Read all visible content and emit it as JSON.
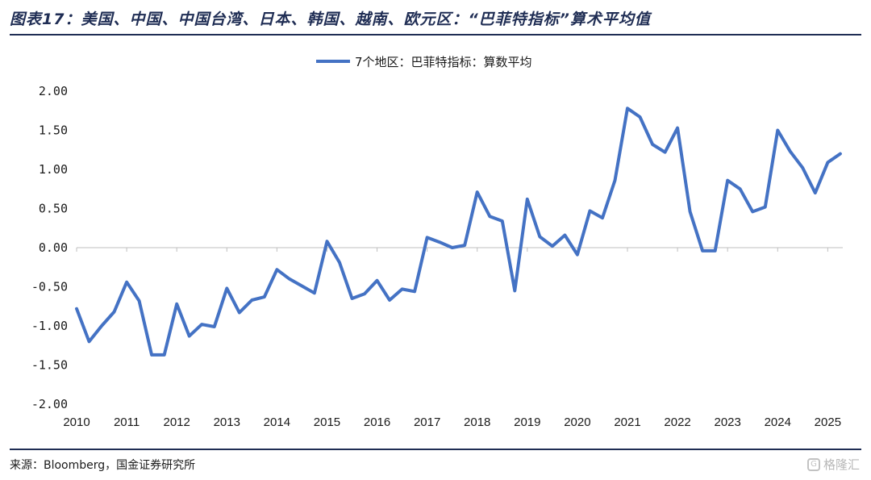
{
  "header": {
    "title": "图表17：美国、中国、中国台湾、日本、韩国、越南、欧元区：“巴菲特指标”算术平均值"
  },
  "footer": {
    "source": "来源：Bloomberg，国金证券研究所",
    "watermark": "格隆汇"
  },
  "icons": {
    "watermark_icon": "G"
  },
  "colors": {
    "series": "#4472c4",
    "accent": "#1f2d54"
  },
  "chart_data": {
    "type": "line",
    "title": "",
    "xlabel": "",
    "ylabel": "",
    "ylim": [
      -2.0,
      2.0
    ],
    "xlim": [
      2010,
      2025.3
    ],
    "y_ticks": [
      "2.00",
      "1.50",
      "1.00",
      "0.50",
      "0.00",
      "-0.50",
      "-1.00",
      "-1.50",
      "-2.00"
    ],
    "x_ticks": [
      "2010",
      "2011",
      "2012",
      "2013",
      "2014",
      "2015",
      "2016",
      "2017",
      "2018",
      "2019",
      "2020",
      "2021",
      "2022",
      "2023",
      "2024",
      "2025"
    ],
    "grid": false,
    "legend_position": "top-center",
    "series": [
      {
        "name": "7个地区：巴菲特指标：算数平均",
        "x": [
          2010.0,
          2010.25,
          2010.5,
          2010.75,
          2011.0,
          2011.25,
          2011.5,
          2011.75,
          2012.0,
          2012.25,
          2012.5,
          2012.75,
          2013.0,
          2013.25,
          2013.5,
          2013.75,
          2014.0,
          2014.25,
          2014.5,
          2014.75,
          2015.0,
          2015.25,
          2015.5,
          2015.75,
          2016.0,
          2016.25,
          2016.5,
          2016.75,
          2017.0,
          2017.25,
          2017.5,
          2017.75,
          2018.0,
          2018.25,
          2018.5,
          2018.75,
          2019.0,
          2019.25,
          2019.5,
          2019.75,
          2020.0,
          2020.25,
          2020.5,
          2020.75,
          2021.0,
          2021.25,
          2021.5,
          2021.75,
          2022.0,
          2022.25,
          2022.5,
          2022.75,
          2023.0,
          2023.25,
          2023.5,
          2023.75,
          2024.0,
          2024.25,
          2024.5,
          2024.75,
          2025.0,
          2025.25
        ],
        "values": [
          -0.78,
          -1.2,
          -1.0,
          -0.82,
          -0.44,
          -0.68,
          -1.37,
          -1.37,
          -0.72,
          -1.13,
          -0.98,
          -1.01,
          -0.52,
          -0.83,
          -0.67,
          -0.63,
          -0.28,
          -0.4,
          -0.49,
          -0.58,
          0.08,
          -0.19,
          -0.65,
          -0.59,
          -0.42,
          -0.67,
          -0.53,
          -0.56,
          0.13,
          0.07,
          0.0,
          0.03,
          0.71,
          0.4,
          0.34,
          -0.55,
          0.62,
          0.14,
          0.02,
          0.16,
          -0.09,
          0.47,
          0.38,
          0.86,
          1.78,
          1.67,
          1.32,
          1.22,
          1.53,
          0.46,
          -0.04,
          -0.04,
          0.86,
          0.75,
          0.46,
          0.52,
          1.5,
          1.23,
          1.02,
          0.7,
          1.09,
          1.2
        ]
      }
    ]
  }
}
